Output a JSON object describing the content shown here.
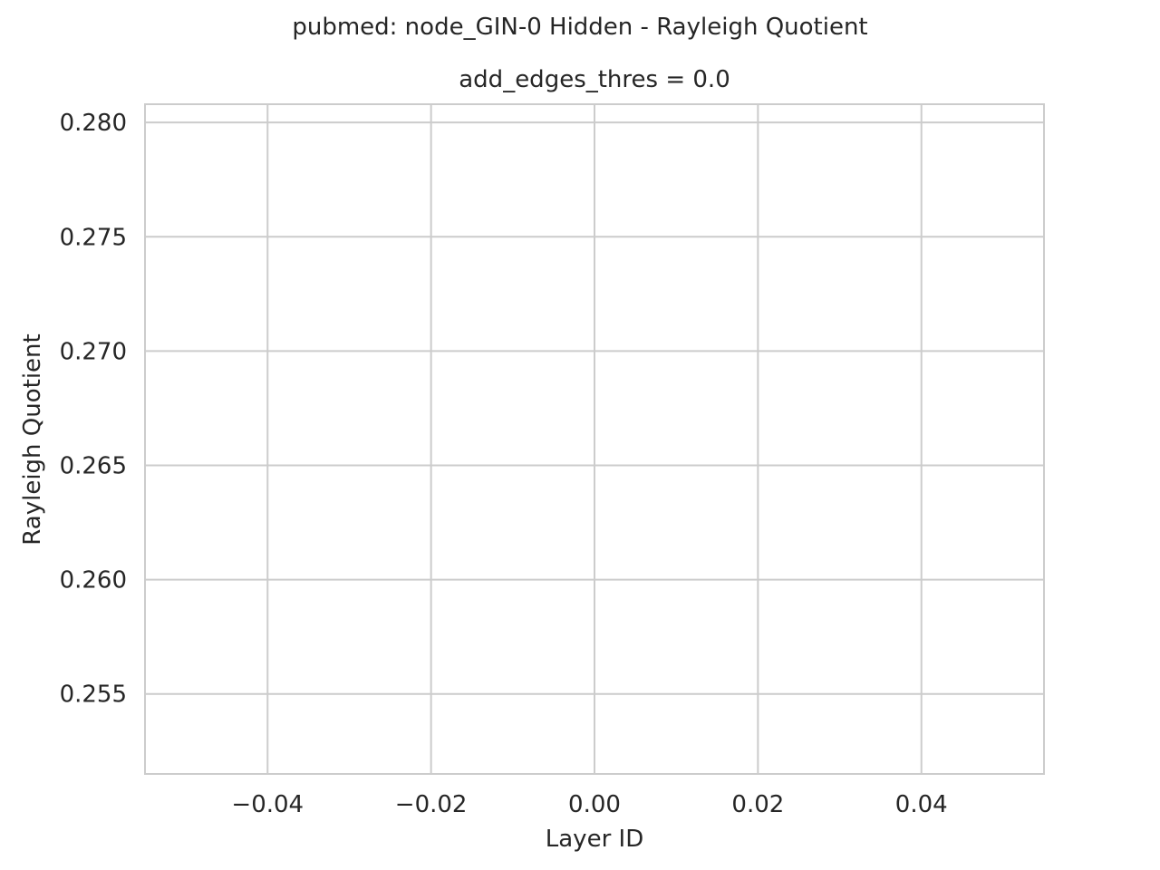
{
  "figure": {
    "suptitle": "pubmed: node_GIN-0 Hidden - Rayleigh Quotient"
  },
  "chart_data": {
    "type": "line",
    "title": "add_edges_thres = 0.0",
    "xlabel": "Layer ID",
    "ylabel": "Rayleigh Quotient",
    "xlim": [
      -0.055,
      0.055
    ],
    "ylim": [
      0.2515,
      0.2808
    ],
    "xticks": [
      -0.04,
      -0.02,
      0.0,
      0.02,
      0.04
    ],
    "xtick_labels": [
      "−0.04",
      "−0.02",
      "0.00",
      "0.02",
      "0.04"
    ],
    "yticks": [
      0.255,
      0.26,
      0.265,
      0.27,
      0.275,
      0.28
    ],
    "ytick_labels": [
      "0.255",
      "0.260",
      "0.265",
      "0.270",
      "0.275",
      "0.280"
    ],
    "grid": true,
    "series": [],
    "colors": {
      "grid": "#cccccc",
      "spine": "#cccccc",
      "background": "#ffffff",
      "text": "#262626"
    }
  }
}
